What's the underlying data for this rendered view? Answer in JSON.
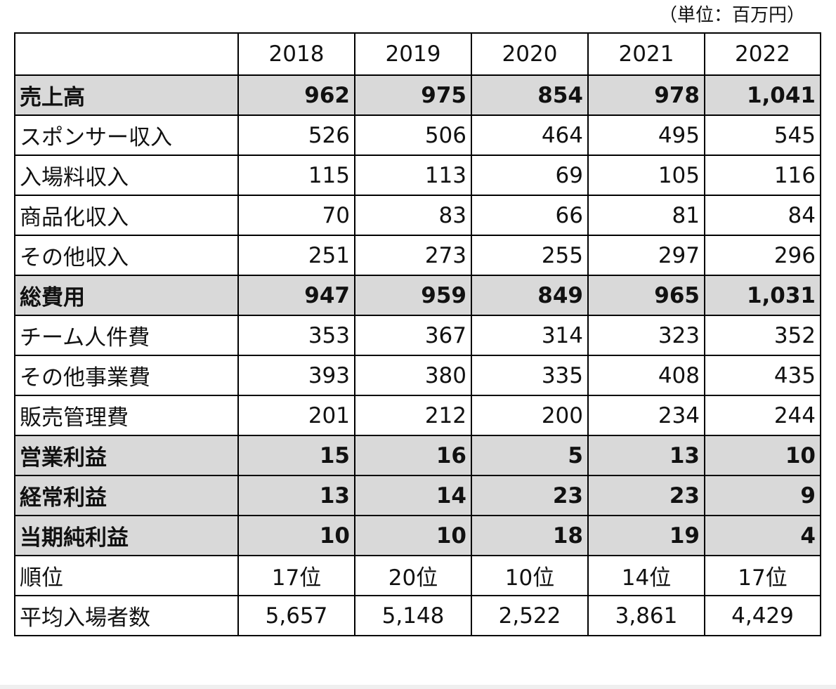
{
  "unit_note": "（単位：百万円）",
  "chart_data": {
    "type": "table",
    "columns": [
      "",
      "2018",
      "2019",
      "2020",
      "2021",
      "2022"
    ],
    "rows": [
      {
        "label": "売上高",
        "values": [
          "962",
          "975",
          "854",
          "978",
          "1,041"
        ],
        "bold": true,
        "align": "right"
      },
      {
        "label": "スポンサー収入",
        "values": [
          "526",
          "506",
          "464",
          "495",
          "545"
        ],
        "bold": false,
        "align": "right"
      },
      {
        "label": "入場料収入",
        "values": [
          "115",
          "113",
          "69",
          "105",
          "116"
        ],
        "bold": false,
        "align": "right"
      },
      {
        "label": "商品化収入",
        "values": [
          "70",
          "83",
          "66",
          "81",
          "84"
        ],
        "bold": false,
        "align": "right"
      },
      {
        "label": "その他収入",
        "values": [
          "251",
          "273",
          "255",
          "297",
          "296"
        ],
        "bold": false,
        "align": "right"
      },
      {
        "label": "総費用",
        "values": [
          "947",
          "959",
          "849",
          "965",
          "1,031"
        ],
        "bold": true,
        "align": "right"
      },
      {
        "label": "チーム人件費",
        "values": [
          "353",
          "367",
          "314",
          "323",
          "352"
        ],
        "bold": false,
        "align": "right"
      },
      {
        "label": "その他事業費",
        "values": [
          "393",
          "380",
          "335",
          "408",
          "435"
        ],
        "bold": false,
        "align": "right"
      },
      {
        "label": "販売管理費",
        "values": [
          "201",
          "212",
          "200",
          "234",
          "244"
        ],
        "bold": false,
        "align": "right"
      },
      {
        "label": "営業利益",
        "values": [
          "15",
          "16",
          "5",
          "13",
          "10"
        ],
        "bold": true,
        "align": "right"
      },
      {
        "label": "経常利益",
        "values": [
          "13",
          "14",
          "23",
          "23",
          "9"
        ],
        "bold": true,
        "align": "right"
      },
      {
        "label": "当期純利益",
        "values": [
          "10",
          "10",
          "18",
          "19",
          "4"
        ],
        "bold": true,
        "align": "right"
      },
      {
        "label": "順位",
        "values": [
          "17位",
          "20位",
          "10位",
          "14位",
          "17位"
        ],
        "bold": false,
        "align": "center"
      },
      {
        "label": "平均入場者数",
        "values": [
          "5,657",
          "5,148",
          "2,522",
          "3,861",
          "4,429"
        ],
        "bold": false,
        "align": "center"
      }
    ],
    "highlight_color": "#d9d9d9",
    "border_color": "#000000"
  }
}
